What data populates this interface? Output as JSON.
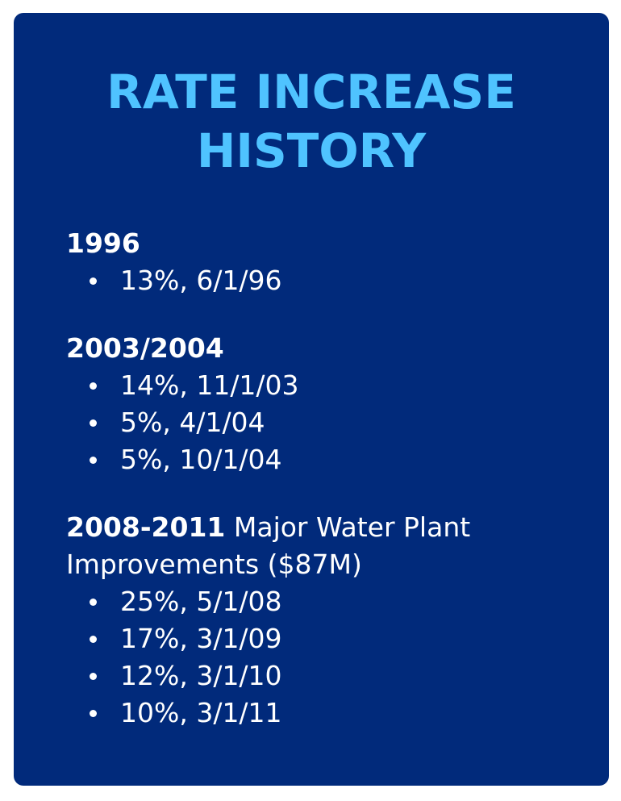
{
  "title_line1": "RATE INCREASE",
  "title_line2": "HISTORY",
  "sections": [
    {
      "year": "1996",
      "note": "",
      "items": [
        "13%, 6/1/96"
      ]
    },
    {
      "year": "2003/2004",
      "note": "",
      "items": [
        "14%, 11/1/03",
        "5%, 4/1/04",
        "5%, 10/1/04"
      ]
    },
    {
      "year": "2008-2011",
      "note": " Major Water Plant Improvements ($87M)",
      "items": [
        "25%, 5/1/08",
        "17%, 3/1/09",
        "12%, 3/1/10",
        "10%, 3/1/11"
      ]
    }
  ],
  "colors": {
    "card_background": "#012a7b",
    "title": "#4fc3ff",
    "text": "#ffffff"
  }
}
